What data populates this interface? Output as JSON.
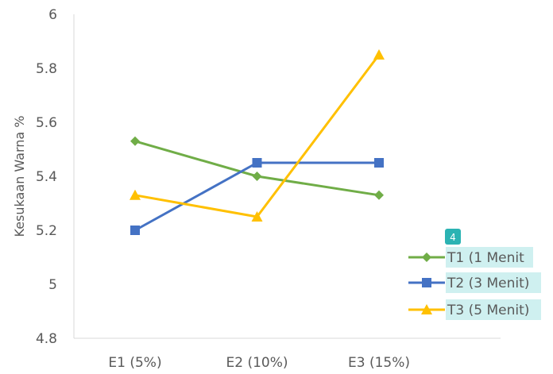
{
  "chart_data": {
    "type": "line",
    "categories": [
      "E1 (5%)",
      "E2 (10%)",
      "E3 (15%)"
    ],
    "ylabel": "Kesukaan Warna  %",
    "ylim": [
      4.8,
      6
    ],
    "yticks": [
      "4.8",
      "5",
      "5.2",
      "5.4",
      "5.6",
      "5.8",
      "6"
    ],
    "grid": false,
    "legend_position": "bottom-right",
    "series": [
      {
        "name": "T1 (1 Menit",
        "values": [
          5.53,
          5.4,
          5.33
        ],
        "color": "#70AD47",
        "marker": "diamond"
      },
      {
        "name": "T2 (3 Menit)",
        "values": [
          5.2,
          5.45,
          5.45
        ],
        "color": "#4472C4",
        "marker": "square"
      },
      {
        "name": "T3 (5 Menit)",
        "values": [
          5.33,
          5.25,
          5.85
        ],
        "color": "#FFC000",
        "marker": "triangle"
      }
    ],
    "annotation_badge": {
      "text": "4",
      "color": "#2BB3B3"
    },
    "legend_highlight_color": "#CFF0F0"
  }
}
